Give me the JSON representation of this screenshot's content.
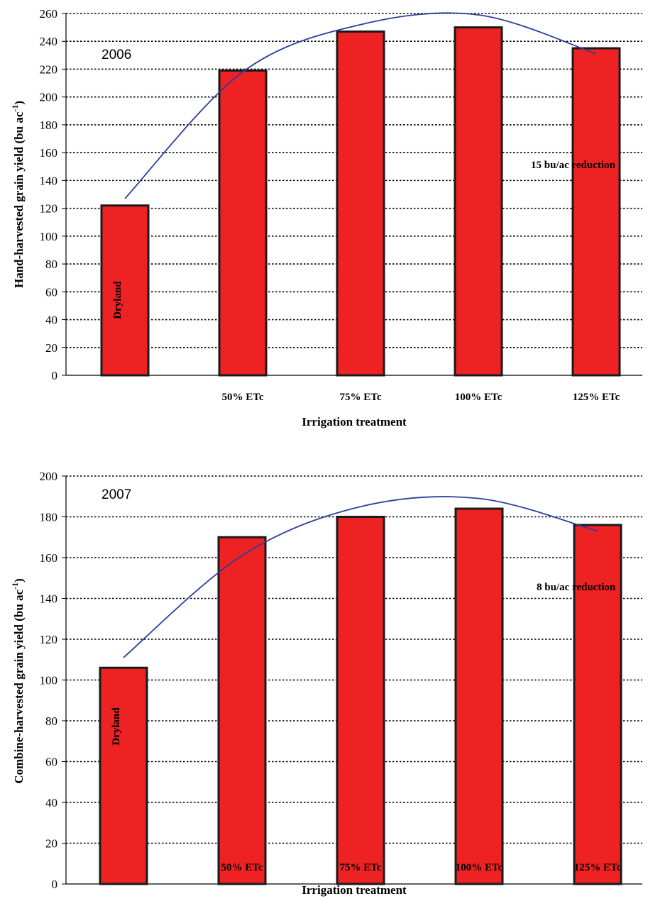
{
  "chart_data": [
    {
      "type": "bar",
      "categories": [
        "",
        "50% ETc",
        "75% ETc",
        "100% ETc",
        "125% ETc"
      ],
      "series": [
        {
          "values": [
            122,
            219,
            247,
            250,
            235
          ],
          "color": "#ee2222"
        }
      ],
      "trendline": {
        "type": "polynomial",
        "color": "#2b3f9a",
        "values": [
          127,
          218,
          252,
          259,
          231
        ]
      },
      "bar_labels": [
        "Dryland",
        "",
        "",
        "",
        ""
      ],
      "annotations": [
        "2006",
        "15 bu/ac reduction"
      ],
      "xlabel": "Irrigation treatment",
      "ylabel": "Hand-harvested grain yield (bu ac",
      "ylabel_superscript": "-1",
      "ylabel_suffix": ")",
      "ylim": [
        0,
        260
      ],
      "ytick_step": 20,
      "grid": true,
      "grid_style": "dotted"
    },
    {
      "type": "bar",
      "categories": [
        "",
        "50% ETc",
        "75% ETc",
        "100% ETc",
        "125% ETc"
      ],
      "series": [
        {
          "values": [
            106,
            170,
            180,
            184,
            176
          ],
          "color": "#ee2222"
        }
      ],
      "trendline": {
        "type": "polynomial",
        "color": "#2b3f9a",
        "values": [
          111,
          161,
          185,
          189,
          173
        ]
      },
      "bar_labels": [
        "Dryland",
        "",
        "",
        "",
        ""
      ],
      "annotations": [
        "2007",
        "8 bu/ac reduction"
      ],
      "xlabel": "Irrigation treatment",
      "ylabel": "Combine-harvested grain yield (bu ac",
      "ylabel_superscript": "-1",
      "ylabel_suffix": ")",
      "ylim": [
        0,
        200
      ],
      "ytick_step": 20,
      "grid": true,
      "grid_style": "dotted"
    }
  ]
}
